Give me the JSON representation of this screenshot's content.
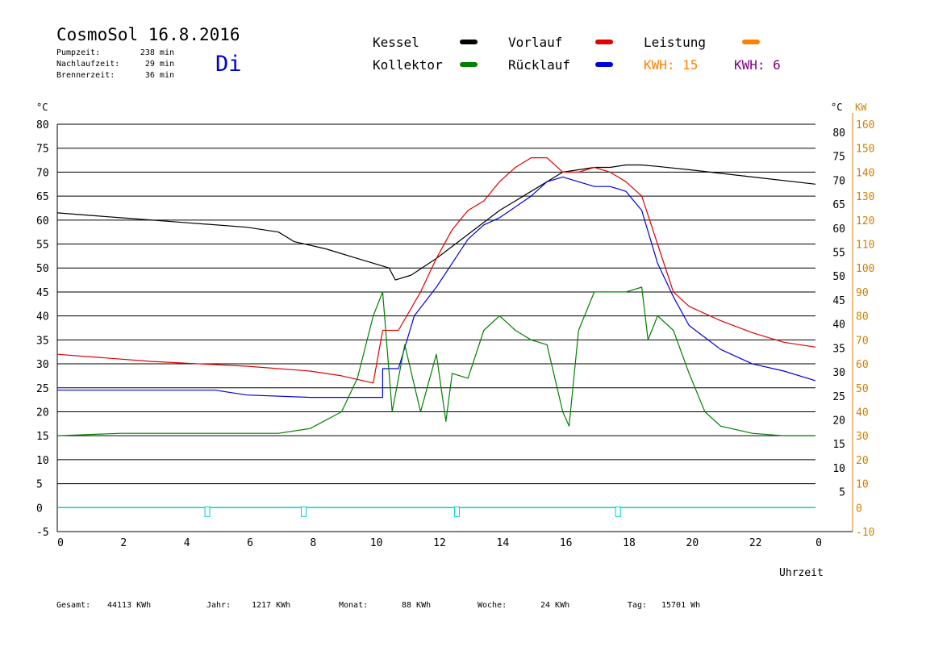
{
  "header": {
    "title": "CosmoSol 16.8.2016",
    "day": "Di",
    "stats": [
      {
        "label": "Pumpzeit:",
        "value": "238 min"
      },
      {
        "label": "Nachlaufzeit:",
        "value": "29 min"
      },
      {
        "label": "Brennerzeit:",
        "value": "36 min"
      }
    ]
  },
  "legend": {
    "items": [
      {
        "label": "Kessel",
        "color": "#000000"
      },
      {
        "label": "Vorlauf",
        "color": "#e00000"
      },
      {
        "label": "Leistung",
        "color": "#ff8000"
      },
      {
        "label": "Kollektor",
        "color": "#008000"
      },
      {
        "label": "Rücklauf",
        "color": "#0000e0"
      }
    ],
    "kwh1": "KWH: 15",
    "kwh2": "KWH: 6",
    "kwh1_color": "#ff8000",
    "kwh2_color": "#800080"
  },
  "axes": {
    "left_unit": "°C",
    "right_unit_temp": "°C",
    "right_unit_power": "KW",
    "xlabel": "Uhrzeit",
    "left_ticks": [
      "80",
      "75",
      "70",
      "65",
      "60",
      "55",
      "50",
      "45",
      "40",
      "35",
      "30",
      "25",
      "20",
      "15",
      "10",
      "5",
      "0",
      "-5"
    ],
    "right_temp_ticks": [
      "80",
      "75",
      "70",
      "65",
      "60",
      "55",
      "50",
      "45",
      "40",
      "35",
      "30",
      "25",
      "20",
      "15",
      "10",
      "5"
    ],
    "right_kw_ticks": [
      "160",
      "150",
      "140",
      "130",
      "120",
      "110",
      "100",
      "90",
      "80",
      "70",
      "60",
      "50",
      "40",
      "30",
      "20",
      "10",
      "0",
      "-10"
    ],
    "x_ticks": [
      "0",
      "2",
      "4",
      "6",
      "8",
      "10",
      "12",
      "14",
      "16",
      "18",
      "20",
      "22",
      "0"
    ]
  },
  "footer": [
    {
      "label": "Gesamt:",
      "value": "44113 KWh"
    },
    {
      "label": "Jahr:",
      "value": "1217 KWh"
    },
    {
      "label": "Monat:",
      "value": "88 KWh"
    },
    {
      "label": "Woche:",
      "value": "24 KWh"
    },
    {
      "label": "Tag:",
      "value": "15701 Wh"
    }
  ],
  "chart_data": {
    "type": "line",
    "xlim": [
      0,
      24
    ],
    "ylim": [
      -5,
      80
    ],
    "y2lim": [
      -10,
      160
    ],
    "grid": true,
    "series": [
      {
        "name": "Kessel",
        "color": "#000000",
        "points": [
          [
            0,
            61.5
          ],
          [
            2,
            60.5
          ],
          [
            4,
            59.5
          ],
          [
            6,
            58.5
          ],
          [
            7,
            57.5
          ],
          [
            7.5,
            55.5
          ],
          [
            8.5,
            54
          ],
          [
            9.5,
            52
          ],
          [
            10.5,
            50
          ],
          [
            10.7,
            47.5
          ],
          [
            11.2,
            48.5
          ],
          [
            12,
            52
          ],
          [
            13,
            57
          ],
          [
            14,
            62
          ],
          [
            15,
            66
          ],
          [
            16,
            70
          ],
          [
            17,
            71
          ],
          [
            17.5,
            71
          ],
          [
            18,
            71.5
          ],
          [
            18.5,
            71.5
          ],
          [
            19,
            71.2
          ],
          [
            20,
            70.5
          ],
          [
            22,
            69
          ],
          [
            24,
            67.5
          ]
        ]
      },
      {
        "name": "Vorlauf",
        "color": "#e00000",
        "points": [
          [
            0,
            32
          ],
          [
            3,
            30.5
          ],
          [
            6,
            29.5
          ],
          [
            8,
            28.5
          ],
          [
            9,
            27.5
          ],
          [
            10,
            26
          ],
          [
            10.3,
            37
          ],
          [
            10.8,
            37
          ],
          [
            11.5,
            45
          ],
          [
            12,
            52
          ],
          [
            12.5,
            58
          ],
          [
            13,
            62
          ],
          [
            13.5,
            64
          ],
          [
            14,
            68
          ],
          [
            14.5,
            71
          ],
          [
            15,
            73
          ],
          [
            15.5,
            73
          ],
          [
            16,
            70
          ],
          [
            16.5,
            70
          ],
          [
            17,
            71
          ],
          [
            17.5,
            70
          ],
          [
            18,
            68
          ],
          [
            18.5,
            65
          ],
          [
            19,
            55
          ],
          [
            19.5,
            45
          ],
          [
            20,
            42
          ],
          [
            21,
            39
          ],
          [
            22,
            36.5
          ],
          [
            23,
            34.5
          ],
          [
            24,
            33.5
          ]
        ]
      },
      {
        "name": "Rücklauf",
        "color": "#0000e0",
        "points": [
          [
            0,
            24.5
          ],
          [
            5,
            24.5
          ],
          [
            6,
            23.5
          ],
          [
            8,
            23
          ],
          [
            10.3,
            23
          ],
          [
            10.3,
            29
          ],
          [
            10.8,
            29
          ],
          [
            11.3,
            40
          ],
          [
            12,
            46
          ],
          [
            12.5,
            51
          ],
          [
            13,
            56
          ],
          [
            13.5,
            59
          ],
          [
            14,
            60.5
          ],
          [
            15,
            65
          ],
          [
            15.5,
            68
          ],
          [
            16,
            69
          ],
          [
            16.5,
            68
          ],
          [
            17,
            67
          ],
          [
            17.5,
            67
          ],
          [
            18,
            66
          ],
          [
            18.5,
            62
          ],
          [
            19,
            51
          ],
          [
            19.5,
            44
          ],
          [
            20,
            38
          ],
          [
            21,
            33
          ],
          [
            22,
            30
          ],
          [
            23,
            28.5
          ],
          [
            24,
            26.5
          ]
        ]
      },
      {
        "name": "Kollektor",
        "color": "#008000",
        "points": [
          [
            0,
            15
          ],
          [
            2,
            15.5
          ],
          [
            4,
            15.5
          ],
          [
            6,
            15.5
          ],
          [
            7,
            15.5
          ],
          [
            8,
            16.5
          ],
          [
            9,
            20
          ],
          [
            9.5,
            27
          ],
          [
            10,
            40
          ],
          [
            10.3,
            45
          ],
          [
            10.6,
            20
          ],
          [
            11,
            34
          ],
          [
            11.5,
            20
          ],
          [
            12,
            32
          ],
          [
            12.3,
            18
          ],
          [
            12.5,
            28
          ],
          [
            13,
            27
          ],
          [
            13.5,
            37
          ],
          [
            14,
            40
          ],
          [
            14.5,
            37
          ],
          [
            15,
            35
          ],
          [
            15.5,
            34
          ],
          [
            16,
            20
          ],
          [
            16.2,
            17
          ],
          [
            16.5,
            37
          ],
          [
            17,
            45
          ],
          [
            17.5,
            45
          ],
          [
            18,
            45
          ],
          [
            18.5,
            46
          ],
          [
            18.7,
            35
          ],
          [
            19,
            40
          ],
          [
            19.5,
            37
          ],
          [
            20,
            28
          ],
          [
            20.5,
            20
          ],
          [
            21,
            17
          ],
          [
            22,
            15.5
          ],
          [
            23,
            15
          ],
          [
            24,
            15
          ]
        ]
      }
    ]
  }
}
